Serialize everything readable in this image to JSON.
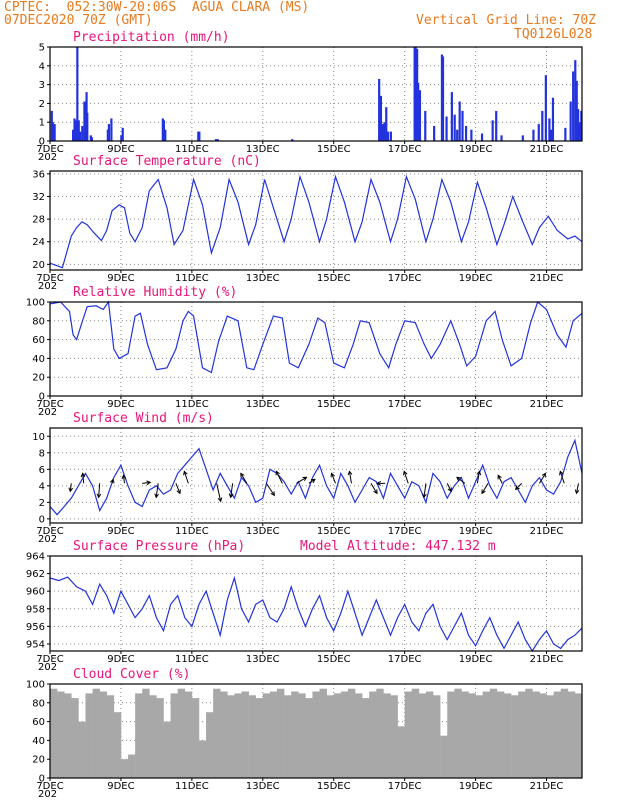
{
  "header": {
    "line1_left": "CPTEC:  052:30W-20:06S  AGUA CLARA (MS)",
    "line2_left": "07DEC2020 70Z (GMT)",
    "line1_right": "Vertical Grid Line: 70Z",
    "line2_right": "TQ0126L028"
  },
  "colors": {
    "header": "#e87a1e",
    "title": "#e8157a",
    "series": "#2233dd",
    "cloud": "#a8a8a8",
    "arrow": "#000000"
  },
  "x_axis": {
    "labels": [
      "7DEC",
      "9DEC",
      "11DEC",
      "13DEC",
      "15DEC",
      "17DEC",
      "19DEC",
      "21DEC"
    ],
    "label_days": [
      0,
      2,
      4,
      6,
      8,
      10,
      12,
      14
    ],
    "range_days": [
      0,
      15
    ],
    "year_stub": "202"
  },
  "chart_data": [
    {
      "type": "bar",
      "title": "Precipitation (mm/h)",
      "ylim": [
        0,
        5
      ],
      "yticks": [
        0,
        1,
        2,
        3,
        4,
        5
      ],
      "grid": true,
      "x": [
        0.02,
        0.05,
        0.1,
        0.62,
        0.66,
        0.7,
        0.74,
        0.78,
        0.82,
        0.88,
        0.94,
        1.0,
        1.02,
        1.12,
        1.15,
        1.6,
        1.63,
        1.7,
        1.98,
        2.02,
        3.15,
        3.18,
        3.22,
        4.15,
        4.18,
        4.65,
        4.7,
        6.8,
        9.25,
        9.3,
        9.35,
        9.4,
        9.45,
        9.5,
        9.58,
        10.25,
        10.28,
        10.32,
        10.35,
        10.4,
        10.55,
        10.8,
        11.02,
        11.05,
        11.15,
        11.3,
        11.38,
        11.45,
        11.52,
        11.6,
        11.7,
        11.85,
        12.15,
        12.45,
        12.55,
        12.7,
        13.3,
        13.6,
        13.75,
        13.85,
        13.95,
        14.05,
        14.1,
        14.15,
        14.5,
        14.65,
        14.72,
        14.78,
        14.82,
        14.86,
        14.9,
        14.95
      ],
      "values": [
        1.6,
        1.0,
        0.9,
        0.6,
        1.2,
        1.1,
        5.0,
        1.1,
        0.5,
        0.8,
        2.1,
        2.6,
        1.5,
        0.3,
        0.2,
        0.6,
        0.9,
        1.2,
        0.3,
        0.7,
        1.2,
        1.1,
        0.6,
        0.5,
        0.5,
        0.1,
        0.1,
        0.1,
        3.3,
        2.4,
        0.9,
        1.0,
        1.8,
        0.5,
        0.5,
        5.0,
        5.0,
        4.9,
        3.1,
        2.7,
        1.6,
        0.8,
        4.6,
        4.5,
        1.3,
        2.6,
        1.4,
        0.6,
        2.1,
        1.6,
        0.8,
        0.6,
        0.4,
        1.1,
        1.6,
        0.3,
        0.3,
        0.6,
        0.9,
        1.6,
        3.5,
        1.2,
        0.6,
        2.3,
        0.7,
        2.1,
        3.7,
        4.3,
        3.2,
        1.7,
        1.0,
        1.6
      ]
    },
    {
      "type": "line",
      "title": "Surface Temperature (nC)",
      "ylim": [
        19,
        36.5
      ],
      "yticks": [
        20,
        24,
        28,
        32,
        36
      ],
      "grid": true,
      "x": [
        0,
        0.35,
        0.6,
        0.75,
        0.9,
        1.05,
        1.25,
        1.45,
        1.6,
        1.75,
        1.95,
        2.1,
        2.25,
        2.4,
        2.6,
        2.8,
        3.05,
        3.3,
        3.5,
        3.75,
        4.05,
        4.3,
        4.55,
        4.8,
        5.05,
        5.3,
        5.6,
        5.8,
        6.05,
        6.3,
        6.6,
        6.8,
        7.05,
        7.3,
        7.6,
        7.8,
        8.05,
        8.3,
        8.6,
        8.8,
        9.05,
        9.3,
        9.6,
        9.8,
        10.05,
        10.3,
        10.6,
        10.8,
        11.05,
        11.3,
        11.6,
        11.8,
        12.05,
        12.3,
        12.6,
        12.8,
        13.05,
        13.3,
        13.6,
        13.8,
        14.05,
        14.3,
        14.6,
        14.8,
        15.0
      ],
      "values": [
        20.2,
        19.4,
        25.0,
        26.5,
        27.5,
        27.0,
        25.5,
        24.2,
        26.0,
        29.5,
        30.5,
        30.0,
        25.5,
        24.0,
        26.5,
        33.0,
        35.0,
        30.0,
        23.5,
        26.0,
        35.0,
        30.5,
        22.0,
        26.5,
        35.0,
        31.0,
        23.5,
        27.0,
        35.0,
        30.0,
        24.0,
        28.0,
        35.5,
        31.0,
        24.0,
        28.0,
        35.5,
        31.0,
        24.0,
        27.5,
        35.0,
        31.0,
        24.0,
        28.0,
        35.5,
        31.5,
        24.0,
        28.0,
        35.0,
        31.0,
        24.0,
        27.5,
        34.5,
        30.0,
        23.5,
        27.0,
        32.0,
        28.0,
        23.5,
        26.5,
        28.5,
        26.0,
        24.5,
        25.0,
        24.0
      ]
    },
    {
      "type": "line",
      "title": "Relative Humidity (%)",
      "ylim": [
        0,
        100
      ],
      "yticks": [
        0,
        20,
        40,
        60,
        80,
        100
      ],
      "grid": true,
      "x": [
        0,
        0.3,
        0.55,
        0.65,
        0.75,
        0.9,
        1.05,
        1.3,
        1.5,
        1.65,
        1.8,
        1.95,
        2.2,
        2.4,
        2.55,
        2.75,
        3.0,
        3.3,
        3.55,
        3.75,
        3.9,
        4.05,
        4.3,
        4.55,
        4.75,
        5.0,
        5.3,
        5.55,
        5.75,
        6.0,
        6.3,
        6.55,
        6.75,
        7.0,
        7.3,
        7.55,
        7.75,
        8.0,
        8.3,
        8.55,
        8.75,
        9.0,
        9.3,
        9.55,
        9.75,
        10.0,
        10.3,
        10.55,
        10.75,
        11.0,
        11.3,
        11.55,
        11.75,
        12.0,
        12.3,
        12.55,
        12.75,
        13.0,
        13.3,
        13.55,
        13.75,
        14.0,
        14.3,
        14.55,
        14.75,
        15.0
      ],
      "values": [
        98,
        100,
        90,
        65,
        60,
        78,
        95,
        96,
        92,
        100,
        50,
        40,
        45,
        85,
        88,
        55,
        28,
        30,
        50,
        80,
        90,
        85,
        30,
        25,
        58,
        85,
        80,
        30,
        28,
        55,
        85,
        83,
        35,
        30,
        55,
        83,
        78,
        35,
        30,
        55,
        80,
        78,
        45,
        30,
        55,
        80,
        78,
        55,
        40,
        55,
        80,
        55,
        32,
        42,
        80,
        90,
        60,
        32,
        40,
        78,
        100,
        92,
        65,
        52,
        80,
        88
      ]
    },
    {
      "type": "line",
      "title": "Surface Wind (m/s)",
      "ylim": [
        -0.5,
        11
      ],
      "yticks": [
        0,
        2,
        4,
        6,
        8,
        10
      ],
      "grid": true,
      "x": [
        0,
        0.2,
        0.4,
        0.6,
        0.8,
        1.0,
        1.2,
        1.4,
        1.6,
        1.8,
        2.0,
        2.2,
        2.4,
        2.6,
        2.8,
        3.0,
        3.2,
        3.4,
        3.6,
        3.8,
        4.0,
        4.2,
        4.4,
        4.6,
        4.8,
        5.0,
        5.2,
        5.4,
        5.6,
        5.8,
        6.0,
        6.2,
        6.4,
        6.6,
        6.8,
        7.0,
        7.2,
        7.4,
        7.6,
        7.8,
        8.0,
        8.2,
        8.4,
        8.6,
        8.8,
        9.0,
        9.2,
        9.4,
        9.6,
        9.8,
        10.0,
        10.2,
        10.4,
        10.6,
        10.8,
        11.0,
        11.2,
        11.4,
        11.6,
        11.8,
        12.0,
        12.2,
        12.4,
        12.6,
        12.8,
        13.0,
        13.2,
        13.4,
        13.6,
        13.8,
        14.0,
        14.2,
        14.4,
        14.6,
        14.8,
        15.0
      ],
      "values": [
        1.5,
        0.5,
        1.5,
        2.5,
        4.0,
        5.5,
        4.0,
        1.0,
        2.5,
        5.0,
        6.5,
        4.0,
        2.0,
        1.5,
        3.5,
        4.0,
        3.0,
        3.5,
        5.5,
        6.5,
        7.5,
        8.5,
        6.0,
        3.5,
        5.5,
        4.0,
        2.5,
        5.0,
        4.0,
        2.0,
        2.5,
        6.0,
        5.5,
        4.5,
        3.0,
        4.5,
        2.5,
        5.0,
        6.5,
        4.0,
        2.5,
        5.5,
        4.0,
        2.0,
        3.5,
        5.0,
        4.5,
        2.5,
        5.5,
        4.0,
        2.5,
        4.5,
        4.0,
        2.0,
        5.5,
        4.5,
        2.5,
        4.0,
        5.0,
        2.5,
        4.5,
        6.5,
        4.0,
        2.5,
        4.5,
        5.0,
        3.5,
        2.0,
        4.0,
        5.0,
        3.5,
        3.0,
        4.5,
        7.5,
        9.5,
        5.5
      ]
    },
    {
      "type": "line",
      "title": "Surface Pressure (hPa)",
      "ylim": [
        953.2,
        964
      ],
      "yticks": [
        954,
        956,
        958,
        960,
        962,
        964
      ],
      "grid": true,
      "x": [
        0,
        0.25,
        0.5,
        0.75,
        1.0,
        1.2,
        1.4,
        1.6,
        1.8,
        2.0,
        2.2,
        2.4,
        2.6,
        2.8,
        3.0,
        3.2,
        3.4,
        3.6,
        3.8,
        4.0,
        4.2,
        4.4,
        4.6,
        4.8,
        5.0,
        5.2,
        5.4,
        5.6,
        5.8,
        6.0,
        6.2,
        6.4,
        6.6,
        6.8,
        7.0,
        7.2,
        7.4,
        7.6,
        7.8,
        8.0,
        8.2,
        8.4,
        8.6,
        8.8,
        9.0,
        9.2,
        9.4,
        9.6,
        9.8,
        10.0,
        10.2,
        10.4,
        10.6,
        10.8,
        11.0,
        11.2,
        11.4,
        11.6,
        11.8,
        12.0,
        12.2,
        12.4,
        12.6,
        12.8,
        13.0,
        13.2,
        13.4,
        13.6,
        13.8,
        14.0,
        14.2,
        14.4,
        14.6,
        14.8,
        15.0
      ],
      "values": [
        961.5,
        961.2,
        961.6,
        960.5,
        960.0,
        958.5,
        960.8,
        959.5,
        957.5,
        960.0,
        958.5,
        957.0,
        958.0,
        959.5,
        957.0,
        955.5,
        958.5,
        959.5,
        957.0,
        956.0,
        958.5,
        960.0,
        957.5,
        955.0,
        959.0,
        961.5,
        958.0,
        956.5,
        958.5,
        959.0,
        957.0,
        956.5,
        958.0,
        960.5,
        958.0,
        956.0,
        958.0,
        959.5,
        957.0,
        955.5,
        957.5,
        960.0,
        957.5,
        955.0,
        957.0,
        959.0,
        957.0,
        955.0,
        957.0,
        958.5,
        956.5,
        955.5,
        957.5,
        958.5,
        956.0,
        954.5,
        956.0,
        957.5,
        955.0,
        953.8,
        955.5,
        957.0,
        955.0,
        953.5,
        955.0,
        956.5,
        954.5,
        953.2,
        954.5,
        955.5,
        954.0,
        953.5,
        954.5,
        955.0,
        955.8
      ]
    },
    {
      "type": "bar",
      "title": "Cloud Cover (%)",
      "ylim": [
        0,
        100
      ],
      "yticks": [
        0,
        20,
        40,
        60,
        80,
        100
      ],
      "grid": true,
      "x": [
        0,
        0.2,
        0.4,
        0.6,
        0.8,
        1.0,
        1.2,
        1.4,
        1.6,
        1.8,
        2.0,
        2.2,
        2.4,
        2.6,
        2.8,
        3.0,
        3.2,
        3.4,
        3.6,
        3.8,
        4.0,
        4.2,
        4.4,
        4.6,
        4.8,
        5.0,
        5.2,
        5.4,
        5.6,
        5.8,
        6.0,
        6.2,
        6.4,
        6.6,
        6.8,
        7.0,
        7.2,
        7.4,
        7.6,
        7.8,
        8.0,
        8.2,
        8.4,
        8.6,
        8.8,
        9.0,
        9.2,
        9.4,
        9.6,
        9.8,
        10.0,
        10.2,
        10.4,
        10.6,
        10.8,
        11.0,
        11.2,
        11.4,
        11.6,
        11.8,
        12.0,
        12.2,
        12.4,
        12.6,
        12.8,
        13.0,
        13.2,
        13.4,
        13.6,
        13.8,
        14.0,
        14.2,
        14.4,
        14.6,
        14.8
      ],
      "values": [
        95,
        92,
        90,
        85,
        60,
        90,
        95,
        92,
        88,
        70,
        20,
        25,
        90,
        95,
        88,
        85,
        60,
        90,
        95,
        92,
        85,
        40,
        70,
        95,
        92,
        88,
        90,
        92,
        88,
        85,
        90,
        92,
        95,
        88,
        92,
        90,
        85,
        92,
        95,
        88,
        90,
        92,
        95,
        90,
        85,
        92,
        95,
        90,
        88,
        55,
        92,
        95,
        90,
        92,
        88,
        45,
        92,
        95,
        92,
        90,
        88,
        92,
        95,
        92,
        90,
        88,
        92,
        95,
        92,
        90,
        88,
        92,
        95,
        92,
        90
      ]
    }
  ],
  "panel_titles_extra": {
    "model_altitude": "Model Altitude: 447.132 m"
  }
}
